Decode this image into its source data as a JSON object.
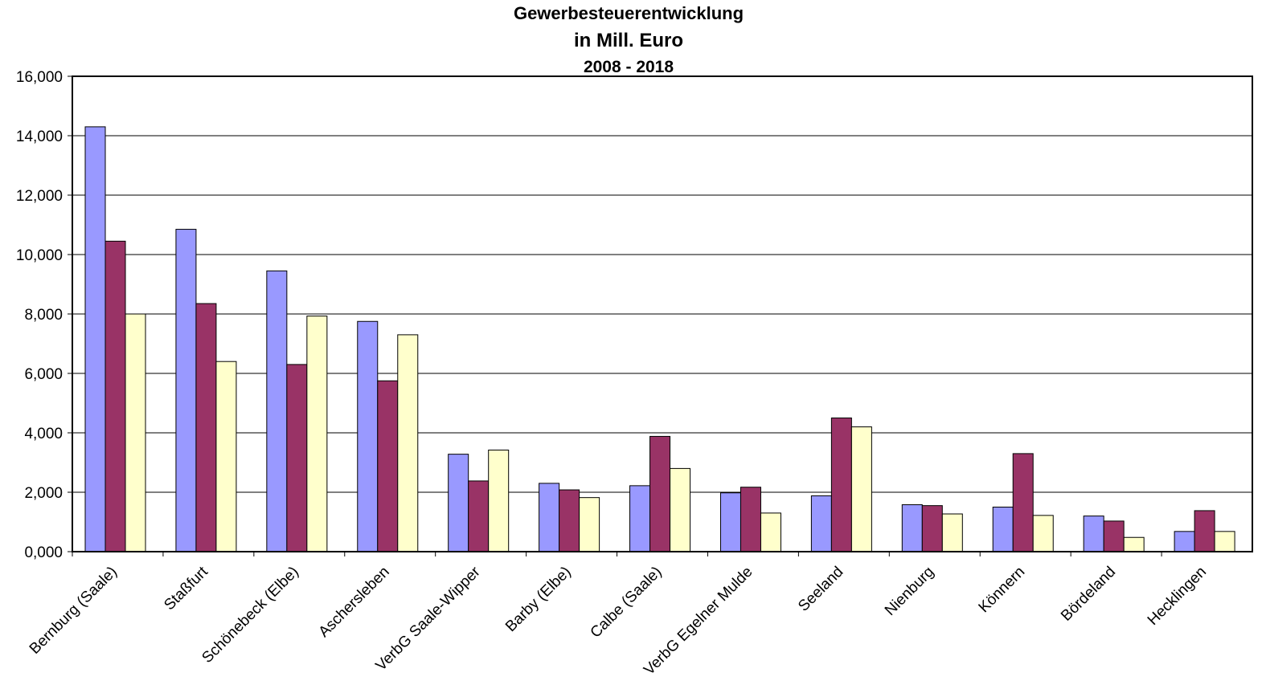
{
  "chart_data": {
    "type": "bar",
    "title_lines": [
      "Gewerbesteuerentwicklung",
      "in Mill. Euro",
      "2008 - 2018"
    ],
    "xlabel": "",
    "ylabel": "",
    "ylim": [
      0,
      16
    ],
    "y_ticks": [
      "0,000",
      "2,000",
      "4,000",
      "6,000",
      "8,000",
      "10,000",
      "12,000",
      "14,000",
      "16,000"
    ],
    "grid": true,
    "legend": "none",
    "categories": [
      "Bernburg (Saale)",
      "Staßfurt",
      "Schönebeck (Elbe)",
      "Aschersleben",
      "VerbG Saale-Wipper",
      "Barby (Elbe)",
      "Calbe (Saale)",
      "VerbG Egelner Mulde",
      "Seeland",
      "Nienburg",
      "Könnern",
      "Bördeland",
      "Hecklingen"
    ],
    "series": [
      {
        "color": "#9999ff",
        "values": [
          14.3,
          10.85,
          9.45,
          7.75,
          3.28,
          2.3,
          2.22,
          1.98,
          1.88,
          1.58,
          1.5,
          1.2,
          0.68
        ]
      },
      {
        "color": "#993366",
        "values": [
          10.45,
          8.35,
          6.3,
          5.75,
          2.38,
          2.08,
          3.88,
          2.17,
          4.5,
          1.55,
          3.3,
          1.03,
          1.38
        ]
      },
      {
        "color": "#ffffcc",
        "values": [
          8.0,
          6.4,
          7.93,
          7.3,
          3.42,
          1.82,
          2.8,
          1.3,
          4.2,
          1.27,
          1.22,
          0.48,
          0.68
        ]
      }
    ]
  }
}
